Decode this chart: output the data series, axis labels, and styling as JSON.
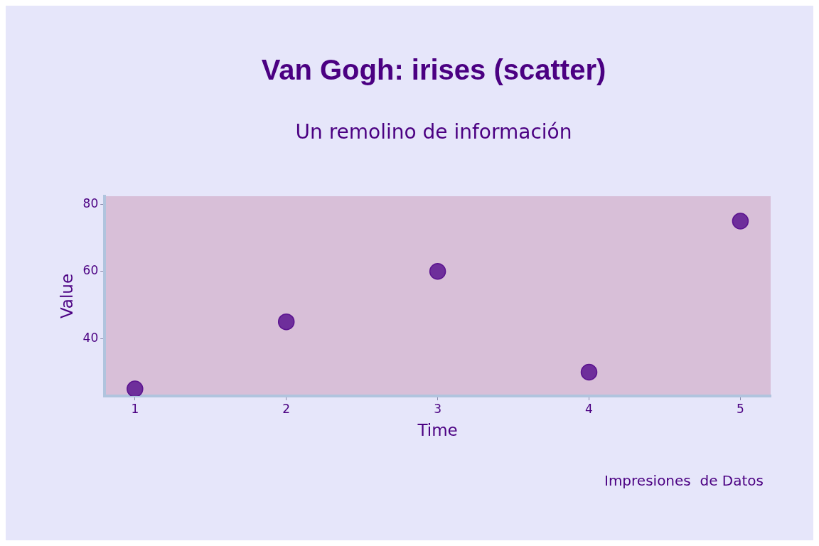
{
  "chart_data": {
    "type": "scatter",
    "title": "Van Gogh: irises (scatter)",
    "subtitle": "Un remolino de información",
    "xlabel": "Time",
    "ylabel": "Value",
    "annotations": [
      "Impresiones  de Datos"
    ],
    "x": [
      1,
      2,
      3,
      4,
      5
    ],
    "series": [
      {
        "color": "#5c1490",
        "values": [
          25,
          45,
          60,
          30,
          75
        ]
      }
    ],
    "xlim": [
      0.8,
      5.2
    ],
    "xticks": [
      1,
      2,
      3,
      4,
      5
    ],
    "ylim": [
      22.9,
      82.4
    ],
    "yticks": [
      40,
      60,
      80
    ],
    "grid": false,
    "legend": false,
    "marker": "circle"
  }
}
